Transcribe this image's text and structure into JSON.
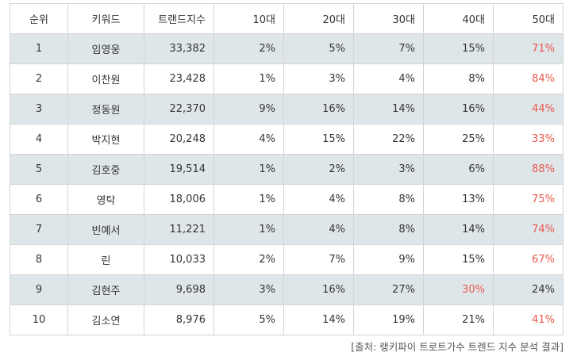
{
  "table": {
    "headers": [
      "순위",
      "키워드",
      "트랜드지수",
      "10대",
      "20대",
      "30대",
      "40대",
      "50대"
    ],
    "rows": [
      {
        "rank": "1",
        "keyword": "임영웅",
        "index": "33,382",
        "a10": "2%",
        "a20": "5%",
        "a30": "7%",
        "a40": "15%",
        "a50": "71%",
        "highlight": "a50"
      },
      {
        "rank": "2",
        "keyword": "이찬원",
        "index": "23,428",
        "a10": "1%",
        "a20": "3%",
        "a30": "4%",
        "a40": "8%",
        "a50": "84%",
        "highlight": "a50"
      },
      {
        "rank": "3",
        "keyword": "정동원",
        "index": "22,370",
        "a10": "9%",
        "a20": "16%",
        "a30": "14%",
        "a40": "16%",
        "a50": "44%",
        "highlight": "a50"
      },
      {
        "rank": "4",
        "keyword": "박지현",
        "index": "20,248",
        "a10": "4%",
        "a20": "15%",
        "a30": "22%",
        "a40": "25%",
        "a50": "33%",
        "highlight": "a50"
      },
      {
        "rank": "5",
        "keyword": "김호중",
        "index": "19,514",
        "a10": "1%",
        "a20": "2%",
        "a30": "3%",
        "a40": "6%",
        "a50": "88%",
        "highlight": "a50"
      },
      {
        "rank": "6",
        "keyword": "영탁",
        "index": "18,006",
        "a10": "1%",
        "a20": "4%",
        "a30": "8%",
        "a40": "13%",
        "a50": "75%",
        "highlight": "a50"
      },
      {
        "rank": "7",
        "keyword": "빈예서",
        "index": "11,221",
        "a10": "1%",
        "a20": "4%",
        "a30": "8%",
        "a40": "14%",
        "a50": "74%",
        "highlight": "a50"
      },
      {
        "rank": "8",
        "keyword": "린",
        "index": "10,033",
        "a10": "2%",
        "a20": "7%",
        "a30": "9%",
        "a40": "15%",
        "a50": "67%",
        "highlight": "a50"
      },
      {
        "rank": "9",
        "keyword": "김현주",
        "index": "9,698",
        "a10": "3%",
        "a20": "16%",
        "a30": "27%",
        "a40": "30%",
        "a50": "24%",
        "highlight": "a40"
      },
      {
        "rank": "10",
        "keyword": "김소연",
        "index": "8,976",
        "a10": "5%",
        "a20": "14%",
        "a30": "19%",
        "a40": "21%",
        "a50": "41%",
        "highlight": "a50"
      }
    ]
  },
  "source": "[출처: 랭키파이 트로트가수 트렌드 지수 분석 결과]",
  "colors": {
    "highlight": "#e8584e",
    "row_shade": "#dfe6ea",
    "border": "#d4d4d4"
  }
}
